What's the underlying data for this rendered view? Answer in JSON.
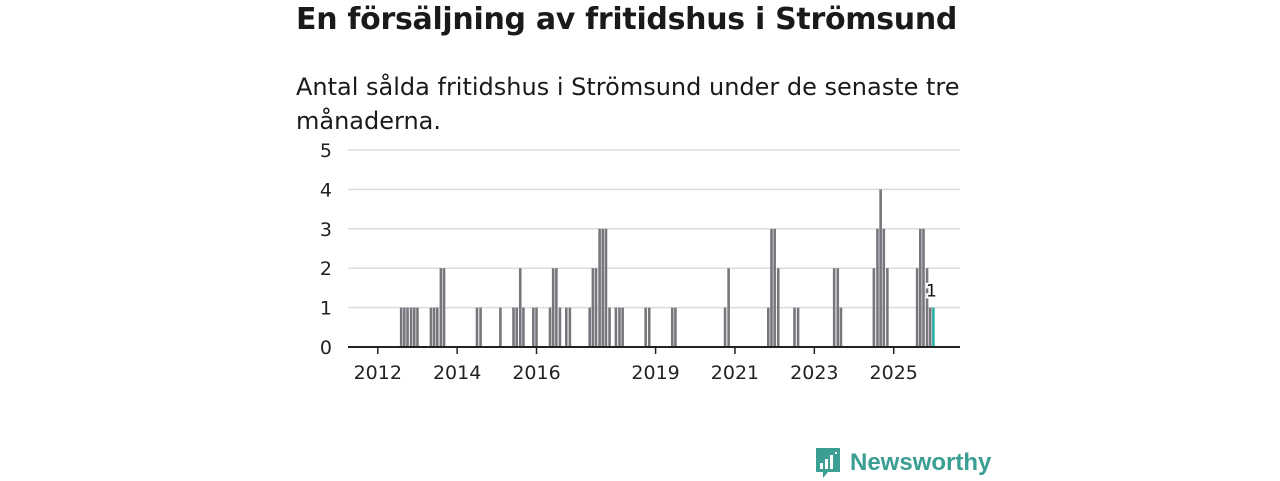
{
  "title": "En försäljning av fritidshus i Strömsund",
  "subtitle": "Antal sålda fritidshus i Strömsund under de senaste tre månaderna.",
  "logo": {
    "text": "Newsworthy",
    "icon": "newsworthy-logo-icon"
  },
  "colors": {
    "bar": "#76777d",
    "highlight": "#2ab0a4",
    "grid": "#dcdcdc",
    "axis": "#222222",
    "brand": "#3a9e93"
  },
  "chart_data": {
    "type": "bar",
    "title": "En försäljning av fritidshus i Strömsund",
    "xlabel": "",
    "ylabel": "",
    "ylim": [
      0,
      5
    ],
    "yticks": [
      "0",
      "1",
      "2",
      "3",
      "4",
      "5"
    ],
    "xlim": [
      2011.33,
      2026.75
    ],
    "xticks": [
      {
        "label": "2012",
        "value": 2012.08
      },
      {
        "label": "2014",
        "value": 2014.08
      },
      {
        "label": "2016",
        "value": 2016.08
      },
      {
        "label": "2019",
        "value": 2019.08
      },
      {
        "label": "2021",
        "value": 2021.08
      },
      {
        "label": "2023",
        "value": 2023.08
      },
      {
        "label": "2025",
        "value": 2025.08
      }
    ],
    "series": [
      {
        "name": "Antal sålda fritidshus",
        "x": [
          2012.67,
          2012.75,
          2012.83,
          2012.92,
          2013.0,
          2013.08,
          2013.42,
          2013.5,
          2013.58,
          2013.67,
          2013.75,
          2014.58,
          2014.67,
          2015.17,
          2015.5,
          2015.58,
          2015.67,
          2015.75,
          2016.0,
          2016.08,
          2016.42,
          2016.5,
          2016.58,
          2016.67,
          2016.83,
          2016.92,
          2017.42,
          2017.5,
          2017.58,
          2017.67,
          2017.75,
          2017.83,
          2017.92,
          2018.08,
          2018.17,
          2018.25,
          2018.83,
          2018.92,
          2019.5,
          2019.58,
          2020.83,
          2020.92,
          2021.92,
          2022.0,
          2022.08,
          2022.17,
          2022.58,
          2022.67,
          2023.58,
          2023.67,
          2023.75,
          2024.58,
          2024.67,
          2024.75,
          2024.83,
          2024.92,
          2025.67,
          2025.75,
          2025.83,
          2025.92,
          2026.0
        ],
        "values": [
          1,
          1,
          1,
          1,
          1,
          1,
          1,
          1,
          1,
          2,
          2,
          1,
          1,
          1,
          1,
          1,
          2,
          1,
          1,
          1,
          1,
          2,
          2,
          1,
          1,
          1,
          1,
          2,
          2,
          3,
          3,
          3,
          1,
          1,
          1,
          1,
          1,
          1,
          1,
          1,
          1,
          2,
          1,
          3,
          3,
          2,
          1,
          1,
          2,
          2,
          1,
          2,
          3,
          4,
          3,
          2,
          2,
          3,
          3,
          2,
          1
        ]
      }
    ],
    "highlight": {
      "x": 2026.08,
      "value": 1,
      "label": "1"
    }
  }
}
